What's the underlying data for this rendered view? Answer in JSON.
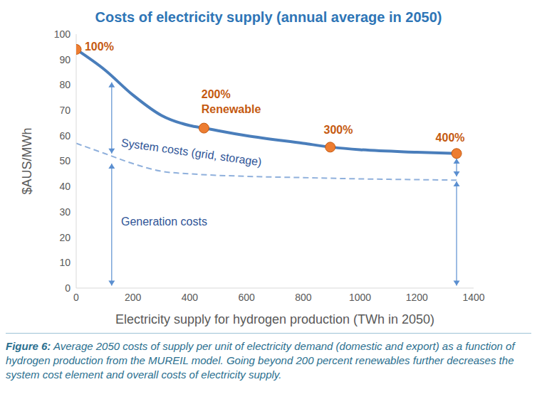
{
  "chart_data": {
    "type": "line",
    "title": "Costs of electricity supply (annual average in 2050)",
    "x_label": "Electricity supply for hydrogen production (TWh in 2050)",
    "y_label": "$AUS/MWh",
    "xlim": [
      0,
      1400
    ],
    "xticks": [
      0,
      200,
      400,
      600,
      800,
      1000,
      1200,
      1400
    ],
    "ylim": [
      0,
      100
    ],
    "yticks": [
      0,
      10,
      20,
      30,
      40,
      50,
      60,
      70,
      80,
      90,
      100
    ],
    "grid": false,
    "series": [
      {
        "type": "line",
        "line_style": "solid",
        "color": "#4a7ebb",
        "x": [
          0,
          100,
          200,
          300,
          400,
          450,
          600,
          800,
          900,
          1000,
          1200,
          1340
        ],
        "values": [
          94,
          86,
          76,
          68,
          64,
          63,
          60,
          57,
          55.5,
          54.5,
          53.5,
          53
        ]
      },
      {
        "type": "line",
        "line_style": "dashed",
        "color": "#8fb0dc",
        "x": [
          0,
          100,
          200,
          300,
          400,
          600,
          800,
          1000,
          1200,
          1340
        ],
        "values": [
          57,
          53,
          49,
          46,
          45,
          44,
          43.5,
          43,
          42.7,
          42.5
        ]
      },
      {
        "type": "scatter",
        "marker": "circle",
        "color": "#ed7d31",
        "x": [
          0,
          450,
          895,
          1340
        ],
        "values": [
          94,
          63,
          55.5,
          53
        ]
      }
    ],
    "annotations": [
      {
        "text": "100%",
        "x": 30,
        "y": 94.7,
        "color": "#c55a11"
      },
      {
        "text": "200%",
        "x": 441,
        "y": 76,
        "color": "#c55a11"
      },
      {
        "text": "Renewable",
        "x": 441,
        "y": 70,
        "color": "#c55a11"
      },
      {
        "text": "300%",
        "x": 872,
        "y": 62,
        "color": "#c55a11"
      },
      {
        "text": "400%",
        "x": 1266,
        "y": 59,
        "color": "#c55a11"
      },
      {
        "text": "System costs (grid, storage)",
        "x": 158,
        "y": 57,
        "color": "#2f5597"
      },
      {
        "text": "Generation costs",
        "x": 158,
        "y": 25.8,
        "color": "#2f5597"
      }
    ],
    "arrows": [
      {
        "x": 125,
        "from": 1,
        "to": 49,
        "color": "#5b8fd0"
      },
      {
        "x": 125,
        "from": 53,
        "to": 81,
        "color": "#5b8fd0"
      },
      {
        "x": 1340,
        "from": 1,
        "to": 42,
        "color": "#5b8fd0"
      },
      {
        "x": 1340,
        "from": 44,
        "to": 51,
        "color": "#5b8fd0"
      }
    ],
    "caption_label": "Figure 6:",
    "caption": "Average 2050 costs of supply per unit of electricity demand (domestic and export) as a function of hydrogen production from the MUREIL model. Going beyond 200 percent renewables further decreases the system cost element and overall costs of electricity supply."
  }
}
